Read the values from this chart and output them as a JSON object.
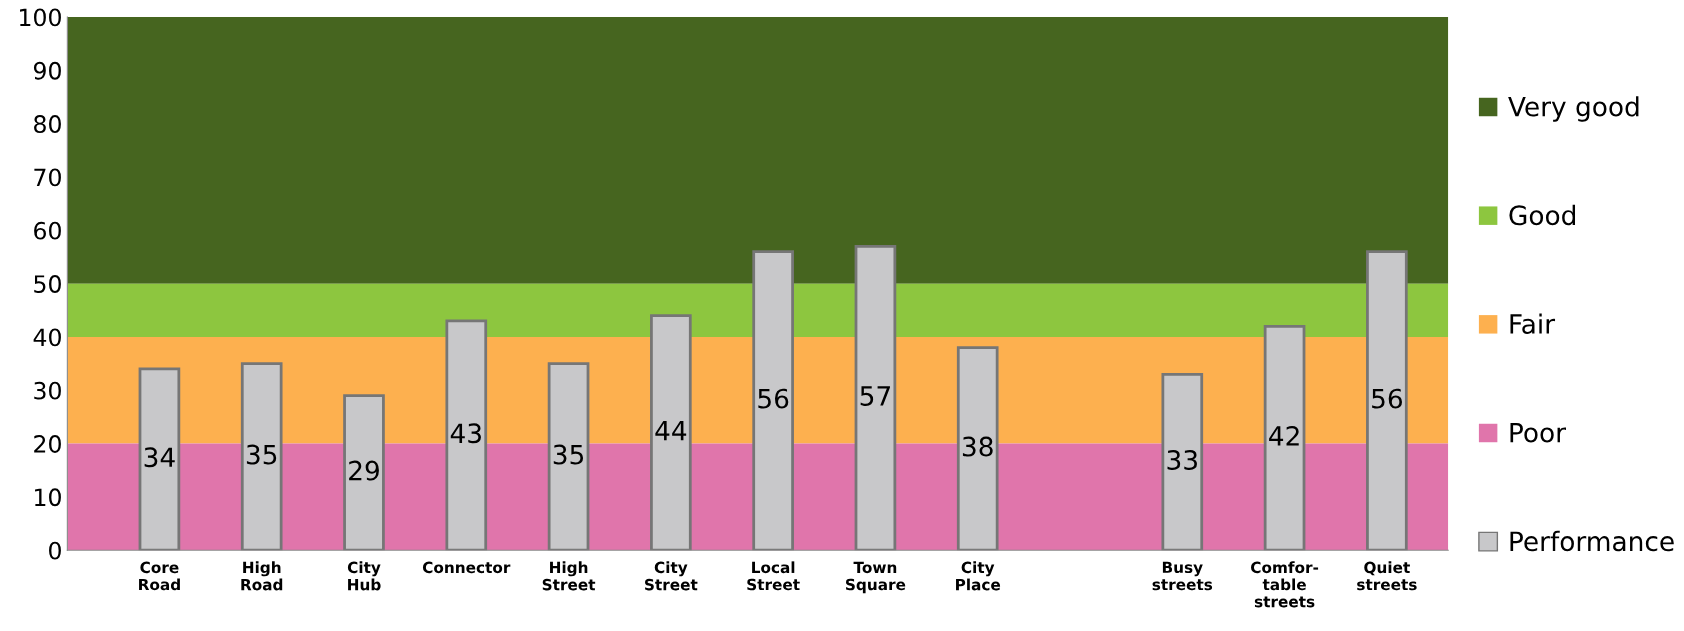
{
  "chart_data": {
    "type": "bar",
    "categories": [
      "Core\nRoad",
      "High\nRoad",
      "City\nHub",
      "Connector",
      "High\nStreet",
      "City\nStreet",
      "Local\nStreet",
      "Town\nSquare",
      "City\nPlace",
      null,
      "Busy\nstreets",
      "Comfor-\ntable\nstreets",
      "Quiet\nstreets"
    ],
    "series": [
      {
        "name": "Performance",
        "color": "#c8c8ca",
        "values": [
          34,
          35,
          29,
          43,
          35,
          44,
          56,
          57,
          38,
          null,
          33,
          42,
          56
        ]
      }
    ],
    "bands": [
      {
        "axis": "y",
        "from": 50,
        "to": 100,
        "label": "Very good",
        "color": "#46651f"
      },
      {
        "axis": "y",
        "from": 40,
        "to": 50,
        "label": "Good",
        "color": "#8dc63f"
      },
      {
        "axis": "y",
        "from": 20,
        "to": 40,
        "label": "Fair",
        "color": "#fdb04f"
      },
      {
        "axis": "y",
        "from": 0,
        "to": 20,
        "label": "Poor",
        "color": "#e075ab"
      }
    ],
    "ylim": [
      0,
      100
    ],
    "yticks": [
      0,
      10,
      20,
      30,
      40,
      50,
      60,
      70,
      80,
      90,
      100
    ],
    "data_labels": true,
    "grid": false,
    "legend": "right"
  }
}
